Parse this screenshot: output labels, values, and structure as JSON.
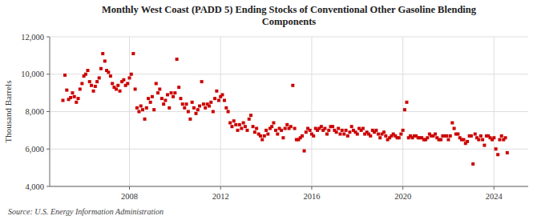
{
  "chart_data": {
    "type": "scatter",
    "title": "Monthly West Coast (PADD 5) Ending Stocks of Conventional Other Gasoline Blending\nComponents",
    "ylabel": "Thousand Barrels",
    "source": "Source: U.S. Energy Information Administration",
    "color": "#cc0000",
    "marker": "square",
    "grid": true,
    "ylim": [
      4000,
      12000
    ],
    "yticks": [
      {
        "value": 4000,
        "label": "4,000"
      },
      {
        "value": 6000,
        "label": "6,000"
      },
      {
        "value": 8000,
        "label": "8,000"
      },
      {
        "value": 10000,
        "label": "10,000"
      },
      {
        "value": 12000,
        "label": "12,000"
      }
    ],
    "xlim": [
      2004.5,
      2025.5
    ],
    "xticks": [
      2008,
      2012,
      2016,
      2020,
      2024
    ],
    "x": [
      2005.08,
      2005.17,
      2005.25,
      2005.33,
      2005.42,
      2005.5,
      2005.58,
      2005.67,
      2005.75,
      2005.83,
      2005.92,
      2006.0,
      2006.08,
      2006.17,
      2006.25,
      2006.33,
      2006.42,
      2006.5,
      2006.58,
      2006.67,
      2006.75,
      2006.83,
      2006.92,
      2007.0,
      2007.08,
      2007.17,
      2007.25,
      2007.33,
      2007.42,
      2007.5,
      2007.58,
      2007.67,
      2007.75,
      2007.83,
      2007.92,
      2008.0,
      2008.08,
      2008.17,
      2008.25,
      2008.33,
      2008.42,
      2008.5,
      2008.58,
      2008.67,
      2008.75,
      2008.83,
      2008.92,
      2009.0,
      2009.08,
      2009.17,
      2009.25,
      2009.33,
      2009.42,
      2009.5,
      2009.58,
      2009.67,
      2009.75,
      2009.83,
      2009.92,
      2010.0,
      2010.08,
      2010.17,
      2010.25,
      2010.33,
      2010.42,
      2010.5,
      2010.58,
      2010.67,
      2010.75,
      2010.83,
      2010.92,
      2011.0,
      2011.08,
      2011.17,
      2011.25,
      2011.33,
      2011.42,
      2011.5,
      2011.58,
      2011.67,
      2011.75,
      2011.83,
      2011.92,
      2012.0,
      2012.08,
      2012.17,
      2012.25,
      2012.33,
      2012.42,
      2012.5,
      2012.58,
      2012.67,
      2012.75,
      2012.83,
      2012.92,
      2013.0,
      2013.08,
      2013.17,
      2013.25,
      2013.33,
      2013.42,
      2013.5,
      2013.58,
      2013.67,
      2013.75,
      2013.83,
      2013.92,
      2014.0,
      2014.08,
      2014.17,
      2014.25,
      2014.33,
      2014.42,
      2014.5,
      2014.58,
      2014.67,
      2014.75,
      2014.83,
      2014.92,
      2015.0,
      2015.08,
      2015.17,
      2015.25,
      2015.33,
      2015.42,
      2015.5,
      2015.58,
      2015.67,
      2015.75,
      2015.83,
      2015.92,
      2016.0,
      2016.08,
      2016.17,
      2016.25,
      2016.33,
      2016.42,
      2016.5,
      2016.58,
      2016.67,
      2016.75,
      2016.83,
      2016.92,
      2017.0,
      2017.08,
      2017.17,
      2017.25,
      2017.33,
      2017.42,
      2017.5,
      2017.58,
      2017.67,
      2017.75,
      2017.83,
      2017.92,
      2018.0,
      2018.08,
      2018.17,
      2018.25,
      2018.33,
      2018.42,
      2018.5,
      2018.58,
      2018.67,
      2018.75,
      2018.83,
      2018.92,
      2019.0,
      2019.08,
      2019.17,
      2019.25,
      2019.33,
      2019.42,
      2019.5,
      2019.58,
      2019.67,
      2019.75,
      2019.83,
      2019.92,
      2020.0,
      2020.08,
      2020.17,
      2020.25,
      2020.33,
      2020.42,
      2020.5,
      2020.58,
      2020.67,
      2020.75,
      2020.83,
      2020.92,
      2021.0,
      2021.08,
      2021.17,
      2021.25,
      2021.33,
      2021.42,
      2021.5,
      2021.58,
      2021.67,
      2021.75,
      2021.83,
      2021.92,
      2022.0,
      2022.08,
      2022.17,
      2022.25,
      2022.33,
      2022.42,
      2022.5,
      2022.58,
      2022.67,
      2022.75,
      2022.83,
      2022.92,
      2023.0,
      2023.08,
      2023.17,
      2023.25,
      2023.33,
      2023.42,
      2023.5,
      2023.58,
      2023.67,
      2023.75,
      2023.83,
      2023.92,
      2024.0,
      2024.08,
      2024.17,
      2024.25,
      2024.33,
      2024.42,
      2024.5,
      2024.58
    ],
    "values": [
      8600,
      9950,
      9150,
      8650,
      8750,
      9000,
      8800,
      8500,
      8700,
      9200,
      9500,
      9900,
      10000,
      10200,
      9600,
      9400,
      9100,
      9350,
      9600,
      9800,
      10300,
      11100,
      10700,
      10200,
      10100,
      9900,
      9500,
      9300,
      9200,
      9400,
      9100,
      9600,
      9700,
      9400,
      9500,
      9800,
      10000,
      11100,
      9200,
      8200,
      8000,
      8300,
      8100,
      7600,
      8200,
      8700,
      8500,
      8800,
      8100,
      9500,
      9000,
      9200,
      8700,
      8400,
      8600,
      8900,
      8200,
      9000,
      8800,
      9000,
      10800,
      9300,
      8700,
      8400,
      8200,
      8400,
      8000,
      7600,
      8500,
      8200,
      7900,
      8100,
      8300,
      9600,
      8400,
      8200,
      8400,
      8300,
      8500,
      8000,
      8700,
      9100,
      8600,
      8800,
      8900,
      8600,
      8200,
      8000,
      7400,
      7200,
      7500,
      7300,
      7000,
      7300,
      7100,
      7400,
      7200,
      7000,
      7600,
      7800,
      7200,
      6900,
      7100,
      6800,
      6700,
      6500,
      6700,
      7000,
      6800,
      7100,
      7200,
      7400,
      7000,
      6800,
      7100,
      7000,
      6600,
      7100,
      7300,
      7100,
      7200,
      9400,
      7100,
      6500,
      6500,
      6600,
      6700,
      5900,
      6900,
      7100,
      7000,
      6800,
      6700,
      7100,
      7000,
      7100,
      7200,
      7000,
      7100,
      6800,
      7000,
      7200,
      7200,
      7000,
      6900,
      7100,
      6800,
      7000,
      6800,
      7000,
      6700,
      6900,
      7200,
      7000,
      6900,
      6800,
      7100,
      7000,
      7100,
      6800,
      6900,
      6800,
      6700,
      7000,
      6900,
      7000,
      6800,
      6600,
      6800,
      6900,
      6700,
      6500,
      6600,
      6700,
      6800,
      6700,
      6600,
      6600,
      6800,
      7000,
      8100,
      8500,
      6600,
      6700,
      6600,
      6700,
      6700,
      6600,
      6600,
      6600,
      6500,
      6500,
      6600,
      6800,
      6700,
      6700,
      6800,
      6600,
      6500,
      6500,
      6700,
      6700,
      6700,
      6500,
      6700,
      7400,
      7100,
      6800,
      6800,
      6600,
      6500,
      6500,
      6300,
      6400,
      6700,
      6700,
      5200,
      6800,
      6600,
      6500,
      6700,
      6500,
      6200,
      6700,
      6700,
      6600,
      6500,
      6600,
      6000,
      5700,
      6500,
      6700,
      6500,
      6600,
      5800
    ]
  }
}
